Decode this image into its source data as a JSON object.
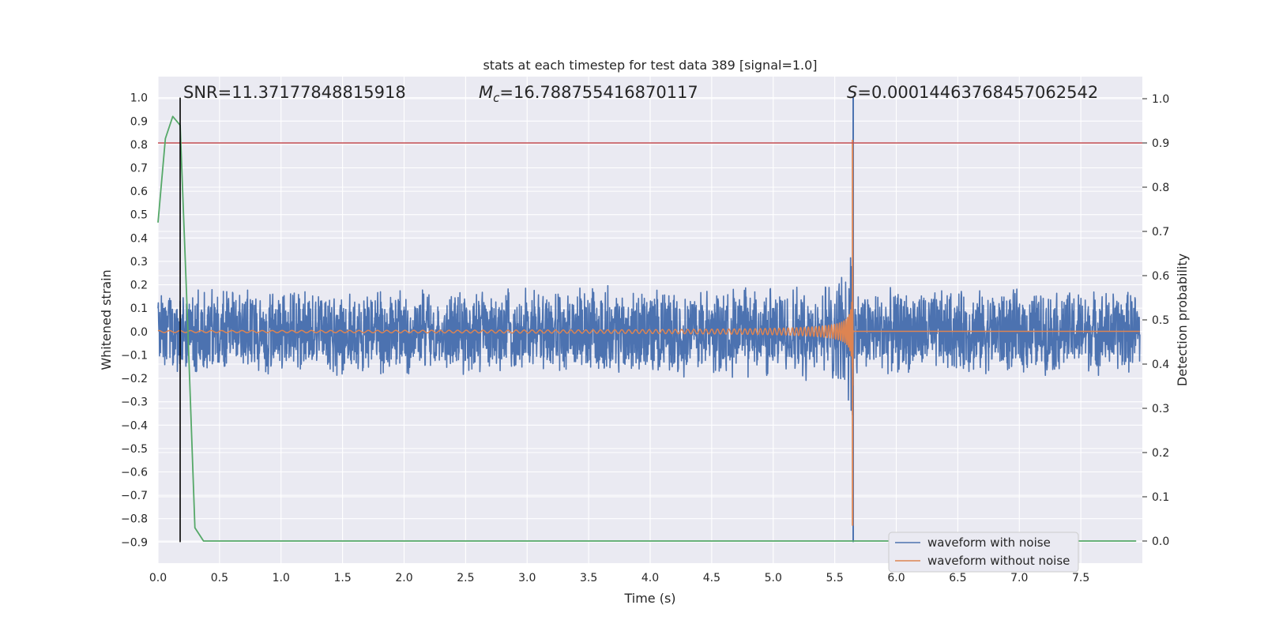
{
  "chart_data": {
    "type": "line",
    "title": "stats at each timestep for test data 389 [signal=1.0]",
    "xlabel": "Time (s)",
    "ylabel_left": "Whitened strain",
    "ylabel_right": "Detection probability",
    "xlim": [
      0.0,
      8.0
    ],
    "ylim_left": [
      -0.99,
      1.09
    ],
    "ylim_right": [
      -0.05,
      1.05
    ],
    "x_ticks": [
      "0.0",
      "0.5",
      "1.0",
      "1.5",
      "2.0",
      "2.5",
      "3.0",
      "3.5",
      "4.0",
      "4.5",
      "5.0",
      "5.5",
      "6.0",
      "6.5",
      "7.0",
      "7.5"
    ],
    "y_ticks_left": [
      "1.0",
      "0.9",
      "0.8",
      "0.7",
      "0.6",
      "0.5",
      "0.4",
      "0.3",
      "0.2",
      "0.1",
      "0.0",
      "−0.1",
      "−0.2",
      "−0.3",
      "−0.4",
      "−0.5",
      "−0.6",
      "−0.7",
      "−0.8",
      "−0.9"
    ],
    "y_ticks_right": [
      "1.0",
      "0.9",
      "0.8",
      "0.7",
      "0.6",
      "0.5",
      "0.4",
      "0.3",
      "0.2",
      "0.1",
      "0.0"
    ],
    "grid": true,
    "legend_position": "lower-right",
    "annotations": {
      "snr": "SNR=11.37177848815918",
      "mc_symbol": "M",
      "mc_sub": "c",
      "mc_value": "=16.788755416870117",
      "s_symbol": "S",
      "s_value": "=0.00014463768457062542"
    },
    "merger_time": 5.65,
    "marker_time": 0.18,
    "threshold": 0.9,
    "noise_amplitude": 0.19,
    "series": [
      {
        "name": "waveform with noise",
        "color": "#4c72b0",
        "kind": "strain_noisy"
      },
      {
        "name": "waveform without noise",
        "color": "#dd8452",
        "kind": "strain_clean"
      },
      {
        "kind": "probability",
        "color": "#55a868",
        "x": [
          0.0,
          0.06,
          0.12,
          0.18,
          0.24,
          0.3,
          0.37,
          1.0,
          2.0,
          3.0,
          4.0,
          5.0,
          6.0,
          7.0,
          7.95
        ],
        "y": [
          0.72,
          0.91,
          0.96,
          0.94,
          0.5,
          0.03,
          0.0,
          0.0,
          0.0,
          0.0,
          0.0,
          0.0,
          0.0,
          0.0,
          0.0
        ]
      }
    ],
    "colors": {
      "background": "#eaeaf2",
      "grid": "#ffffff",
      "threshold": "#c44e52",
      "marker": "#000000"
    }
  }
}
